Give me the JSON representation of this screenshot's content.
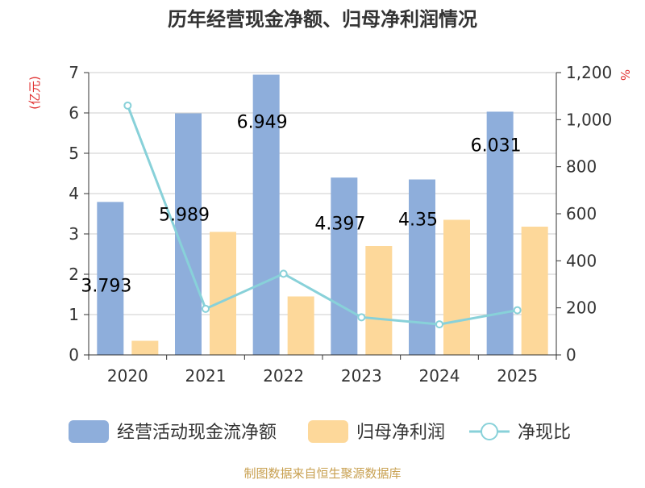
{
  "chart_data": {
    "type": "bar",
    "title": "历年经营现金净额、归母净利润情况",
    "categories": [
      "2020",
      "2021",
      "2022",
      "2023",
      "2024",
      "2025"
    ],
    "series": [
      {
        "name": "经营活动现金流净额",
        "type": "bar",
        "axis": "left",
        "color": "#8eaedb",
        "values": [
          3.793,
          5.989,
          6.949,
          4.397,
          4.35,
          6.031
        ]
      },
      {
        "name": "归母净利润",
        "type": "bar",
        "axis": "left",
        "color": "#fdd89a",
        "values": [
          0.35,
          3.05,
          1.45,
          2.7,
          3.35,
          3.18
        ]
      },
      {
        "name": "净现比",
        "type": "line",
        "axis": "right",
        "color": "#88d1d9",
        "values": [
          1060,
          196,
          345,
          160,
          130,
          190
        ]
      }
    ],
    "data_labels": [
      "3.793",
      "5.989",
      "6.949",
      "4.397",
      "4.35",
      "6.031"
    ],
    "y_left": {
      "label": "(亿元)",
      "ylim": [
        0,
        7
      ],
      "ticks": [
        "0",
        "1",
        "2",
        "3",
        "4",
        "5",
        "6",
        "7"
      ]
    },
    "y_right": {
      "label": "%",
      "ylim": [
        0,
        1200
      ],
      "ticks": [
        "0",
        "200",
        "400",
        "600",
        "800",
        "1,000",
        "1,200"
      ]
    },
    "legend": {
      "position": "bottom",
      "items": [
        "经营活动现金流净额",
        "归母净利润",
        "净现比"
      ]
    },
    "source": "制图数据来自恒生聚源数据库",
    "colors": {
      "title": "#333333",
      "axis_label": "#e03030",
      "source": "#c8a050",
      "grid": "#cccccc",
      "axis": "#333333"
    }
  }
}
